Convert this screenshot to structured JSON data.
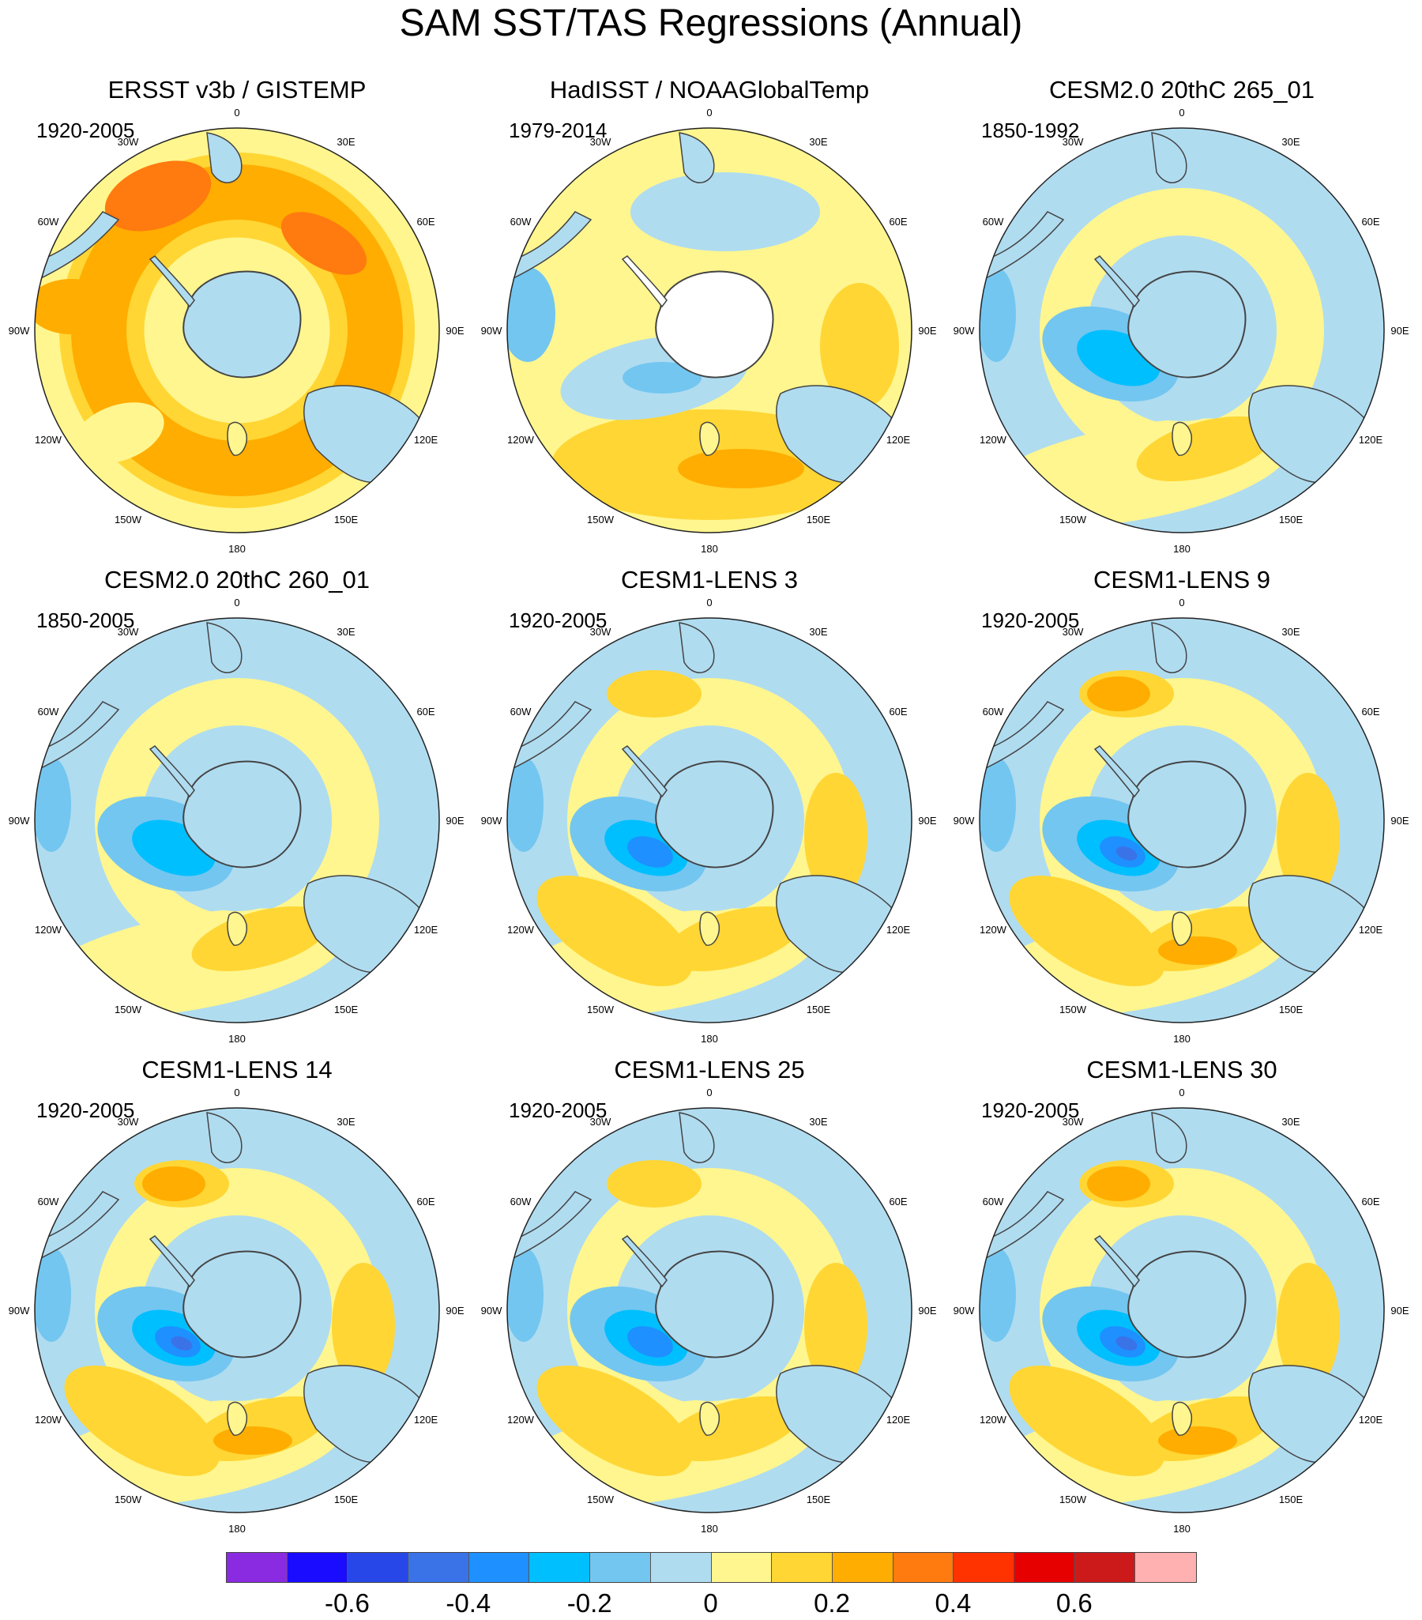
{
  "title": "SAM SST/TAS Regressions (Annual)",
  "lon_labels": [
    "0",
    "30E",
    "60E",
    "90E",
    "120E",
    "150E",
    "180",
    "150W",
    "120W",
    "90W",
    "60W",
    "30W"
  ],
  "panels": [
    {
      "title": "ERSST v3b / GISTEMP",
      "period": "1920-2005",
      "pattern": "warm-ring"
    },
    {
      "title": "HadISST / NOAAGlobalTemp",
      "period": "1979-2014",
      "pattern": "obs-mixed"
    },
    {
      "title": "CESM2.0 20thC 265_01",
      "period": "1850-1992",
      "pattern": "model-weak"
    },
    {
      "title": "CESM2.0 20thC 260_01",
      "period": "1850-2005",
      "pattern": "model-weak"
    },
    {
      "title": "CESM1-LENS 3",
      "period": "1920-2005",
      "pattern": "model-mid"
    },
    {
      "title": "CESM1-LENS 9",
      "period": "1920-2005",
      "pattern": "model-strong"
    },
    {
      "title": "CESM1-LENS 14",
      "period": "1920-2005",
      "pattern": "model-strong"
    },
    {
      "title": "CESM1-LENS 25",
      "period": "1920-2005",
      "pattern": "model-mid"
    },
    {
      "title": "CESM1-LENS 30",
      "period": "1920-2005",
      "pattern": "model-strong"
    }
  ],
  "colorbar": {
    "colors": [
      "#8a2be2",
      "#1a0cff",
      "#2847e8",
      "#3a73e8",
      "#1e90ff",
      "#00bfff",
      "#73c6f0",
      "#b0dcf0",
      "#fff68f",
      "#ffd634",
      "#ffad00",
      "#ff7a0f",
      "#ff3300",
      "#e60000",
      "#cc1a1a",
      "#ffb0b0"
    ],
    "labels": [
      "-0.6",
      "-0.4",
      "-0.2",
      "0",
      "0.2",
      "0.4",
      "0.6"
    ]
  },
  "palette": {
    "antarctica": "#b0dcf0",
    "coast": "#444444"
  }
}
